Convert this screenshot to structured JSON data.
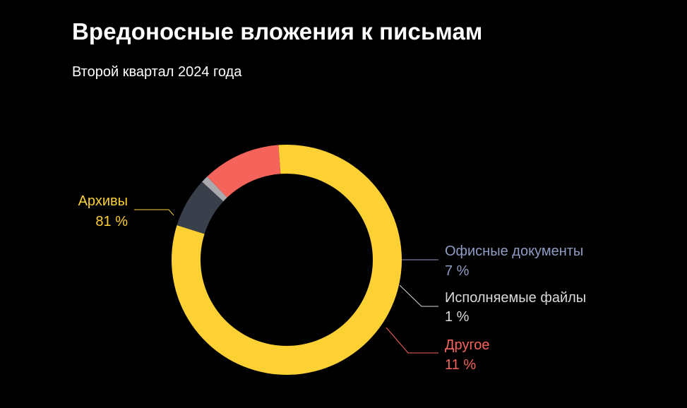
{
  "header": {
    "title": "Вредоносные вложения к письмам",
    "subtitle": "Второй квартал 2024 года"
  },
  "chart_data": {
    "type": "pie",
    "variant": "donut",
    "title": "Вредоносные вложения к письмам",
    "subtitle": "Второй квартал 2024 года",
    "unit": "%",
    "legend": "labels outside with leader lines",
    "slices": [
      {
        "name": "Архивы",
        "value": 81,
        "value_label": "81 %",
        "color": "#fdd033",
        "label_color": "#fdd033"
      },
      {
        "name": "Офисные документы",
        "value": 7,
        "value_label": "7 %",
        "color": "#3a3f4c",
        "label_color": "#8f9cc4"
      },
      {
        "name": "Исполняемые файлы",
        "value": 1,
        "value_label": "1 %",
        "color": "#a9a9ae",
        "label_color": "#d9d9d9"
      },
      {
        "name": "Другое",
        "value": 11,
        "value_label": "11 %",
        "color": "#f5645a",
        "label_color": "#f5645a"
      }
    ]
  }
}
